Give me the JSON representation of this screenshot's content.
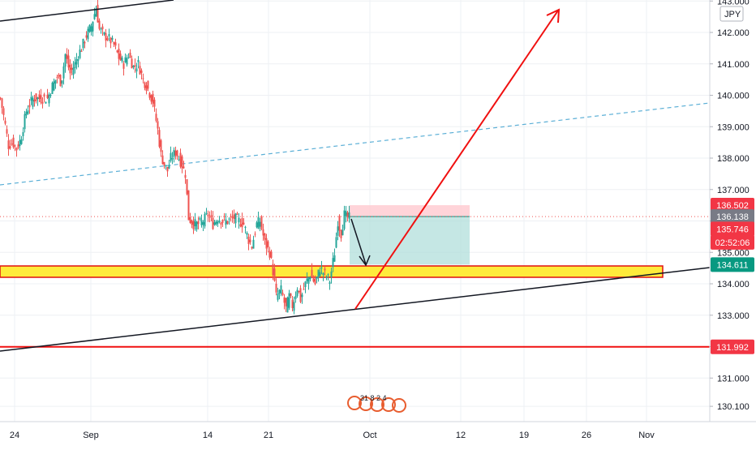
{
  "chart_data": {
    "type": "candlestick",
    "currency_label": "JPY",
    "y_range": [
      130.1,
      143.0
    ],
    "price_ticks": [
      130.1,
      131.0,
      132.0,
      133.0,
      134.0,
      135.0,
      136.0,
      137.0,
      138.0,
      139.0,
      140.0,
      141.0,
      142.0,
      143.0
    ],
    "price_tick_labels": [
      "130.100",
      "131.000",
      "132.000",
      "133.000",
      "134.000",
      "135.000",
      "136.000",
      "137.000",
      "138.000",
      "139.000",
      "140.000",
      "141.000",
      "142.000",
      "143.000"
    ],
    "time_labels": [
      "24",
      "Sep",
      "14",
      "21",
      "Oct",
      "12",
      "19",
      "26",
      "Nov"
    ],
    "tags": [
      {
        "name": "stop-loss",
        "text": "136.502",
        "value": 136.502,
        "color": "#f23645"
      },
      {
        "name": "last-price",
        "text": "136.138",
        "value": 136.138,
        "color": "#787b86"
      },
      {
        "name": "entry",
        "text": "135.746",
        "value": 135.746,
        "color": "#f23645"
      },
      {
        "name": "countdown",
        "text": "02:52:06",
        "value": 135.32,
        "color": "#f23645"
      },
      {
        "name": "take-profit",
        "text": "134.611",
        "value": 134.611,
        "color": "#089981"
      },
      {
        "name": "support",
        "text": "131.992",
        "value": 131.992,
        "color": "#f23645"
      }
    ],
    "events_label": "31 8 2 4",
    "colors": {
      "up": "#26a69a",
      "down": "#ef5350",
      "trendline": "#131722",
      "channel": "#5bafd6",
      "arrow": "#f01010",
      "zone_fill": "#ffeb3b",
      "zone_border": "#e01010",
      "profit_fill": "#b2dfdb",
      "loss_fill": "#ffcdd2"
    }
  }
}
